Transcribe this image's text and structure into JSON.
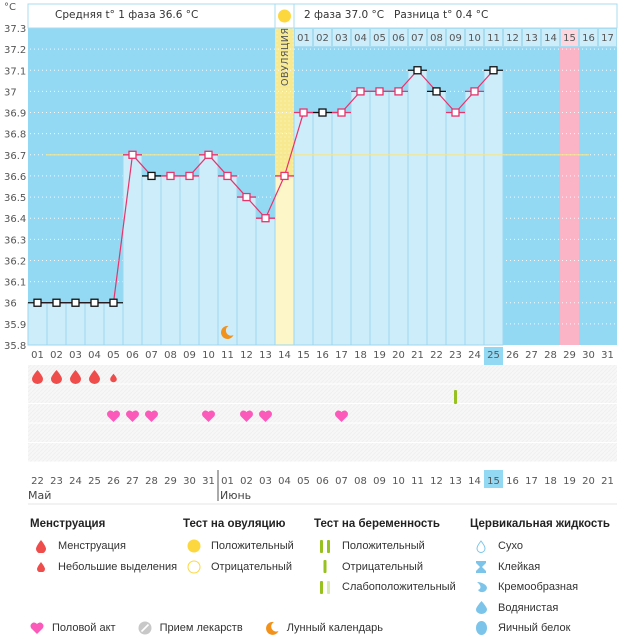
{
  "chart_data": {
    "type": "line",
    "title": "",
    "ylabel": "°C",
    "ylim": [
      35.8,
      37.3
    ],
    "yticks": [
      "37.3",
      "37.2",
      "37.1",
      "37",
      "36.9",
      "36.8",
      "36.7",
      "36.6",
      "36.5",
      "36.4",
      "36.3",
      "36.2",
      "36.1",
      "36",
      "35.9",
      "35.8"
    ],
    "cycle_days": [
      "01",
      "02",
      "03",
      "04",
      "05",
      "06",
      "07",
      "08",
      "09",
      "10",
      "11",
      "12",
      "13",
      "14",
      "15",
      "16",
      "17",
      "18",
      "19",
      "20",
      "21",
      "22",
      "23",
      "24",
      "25",
      "26",
      "27",
      "28",
      "29",
      "30",
      "31"
    ],
    "temperatures": [
      36.0,
      36.0,
      36.0,
      36.0,
      36.0,
      36.7,
      36.6,
      36.6,
      36.6,
      36.7,
      36.6,
      36.5,
      36.4,
      36.6,
      36.9,
      36.9,
      36.9,
      37.0,
      37.0,
      37.0,
      37.1,
      37.0,
      36.9,
      37.0,
      37.1,
      null,
      null,
      null,
      null,
      null,
      null
    ],
    "black_markers_days": [
      1,
      2,
      3,
      4,
      5,
      7,
      16,
      21,
      22,
      25
    ],
    "coverline": 36.7,
    "ovulation_day": 14,
    "ovulation_label": "ОВУЛЯЦИЯ",
    "today_cycle_day": "25",
    "phase2_days": [
      "01",
      "02",
      "03",
      "04",
      "05",
      "06",
      "07",
      "08",
      "09",
      "10",
      "11",
      "12",
      "13",
      "14",
      "15",
      "16",
      "17"
    ],
    "highlight_phase2_day": "15",
    "calendar_dates": [
      "22",
      "23",
      "24",
      "25",
      "26",
      "27",
      "28",
      "29",
      "30",
      "31",
      "01",
      "02",
      "03",
      "04",
      "05",
      "06",
      "07",
      "08",
      "09",
      "10",
      "11",
      "12",
      "13",
      "14",
      "15",
      "16",
      "17",
      "18",
      "19",
      "20",
      "21"
    ],
    "weekend_indices": [
      1,
      2,
      8,
      9,
      15,
      16,
      22,
      23,
      29,
      30
    ],
    "today_calendar_index": 24,
    "months": [
      {
        "label": "Май",
        "start_index": 0
      },
      {
        "label": "Июнь",
        "start_index": 10
      }
    ],
    "menstruation_days": [
      1,
      2,
      3,
      4
    ],
    "spotting_days": [
      5
    ],
    "pregnancy_test_negative_days": [
      23
    ],
    "intercourse_days": [
      5,
      6,
      7,
      10,
      12,
      13,
      17
    ],
    "moon_days": [
      11
    ]
  },
  "header": {
    "phase1": "Средняя t° 1 фаза 36.6 °C",
    "phase2": "2 фаза 37.0 °C",
    "difference": "Разница t° 0.4 °C"
  },
  "colors": {
    "bg_blue": "#93d9f3",
    "bar_fill": "#cdedfb",
    "line": "#e8336b",
    "coverline": "#f4e58c",
    "ovulation": "#f6e98f",
    "highlight_pink": "#fbb3c6",
    "weekend": "#e3265a",
    "drop": "#ef4c4c",
    "heart": "#fb5aba",
    "test_green": "#96c11f",
    "moon": "#f2921b"
  },
  "legend": {
    "menstruation": {
      "title": "Менструация",
      "items": [
        "Менструация",
        "Небольшие выделения"
      ]
    },
    "ovulation_test": {
      "title": "Тест на овуляцию",
      "items": [
        "Положительный",
        "Отрицательный"
      ]
    },
    "pregnancy_test": {
      "title": "Тест на беременность",
      "items": [
        "Положительный",
        "Отрицательный",
        "Слабоположительный"
      ]
    },
    "cervical_fluid": {
      "title": "Цервикальная жидкость",
      "items": [
        "Сухо",
        "Клейкая",
        "Кремообразная",
        "Водянистая",
        "Яичный белок"
      ]
    },
    "bottom": [
      "Половой акт",
      "Прием лекарств",
      "Лунный календарь"
    ]
  }
}
